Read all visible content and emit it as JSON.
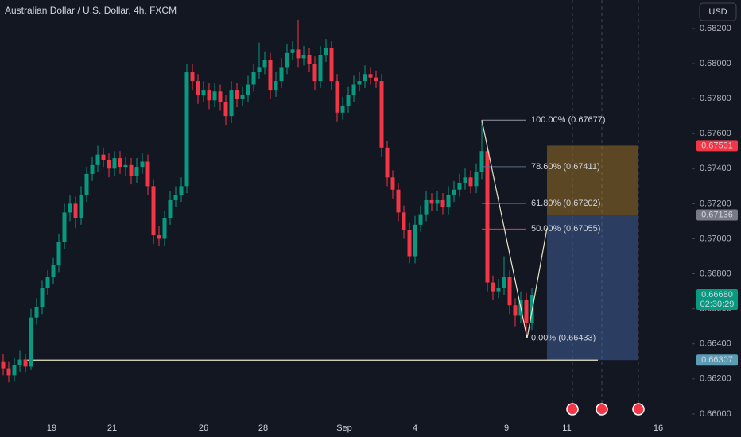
{
  "chart_data": {
    "type": "candlestick",
    "title": "Australian Dollar / U.S. Dollar, 4h, FXCM",
    "currency": "USD",
    "up_color": "#089981",
    "down_color": "#f23645",
    "ylim": [
      0.65868,
      0.68363
    ],
    "yticks": [
      {
        "value": 0.66,
        "label": "0.66000"
      },
      {
        "value": 0.662,
        "label": "0.66200"
      },
      {
        "value": 0.664,
        "label": "0.66400"
      },
      {
        "value": 0.666,
        "label": "0.66600"
      },
      {
        "value": 0.668,
        "label": "0.66800"
      },
      {
        "value": 0.67,
        "label": "0.67000"
      },
      {
        "value": 0.672,
        "label": "0.67200"
      },
      {
        "value": 0.674,
        "label": "0.67400"
      },
      {
        "value": 0.676,
        "label": "0.67600"
      },
      {
        "value": 0.678,
        "label": "0.67800"
      },
      {
        "value": 0.68,
        "label": "0.68000"
      },
      {
        "value": 0.682,
        "label": "0.68200"
      }
    ],
    "x_labels": [
      "19",
      "21",
      "26",
      "28",
      "Sep",
      "4",
      "9",
      "11",
      "16"
    ],
    "candles": [
      [
        0.663,
        0.6634,
        0.6622,
        0.6626
      ],
      [
        0.6626,
        0.663,
        0.6618,
        0.6622
      ],
      [
        0.6622,
        0.6632,
        0.6619,
        0.6628
      ],
      [
        0.6628,
        0.6636,
        0.6624,
        0.6631
      ],
      [
        0.6631,
        0.6634,
        0.6624,
        0.6627
      ],
      [
        0.6627,
        0.666,
        0.6625,
        0.6655
      ],
      [
        0.6655,
        0.6666,
        0.6651,
        0.6661
      ],
      [
        0.6661,
        0.6676,
        0.6657,
        0.6672
      ],
      [
        0.6672,
        0.6682,
        0.6668,
        0.6678
      ],
      [
        0.6678,
        0.6689,
        0.6674,
        0.6685
      ],
      [
        0.6685,
        0.6703,
        0.6681,
        0.6698
      ],
      [
        0.6698,
        0.672,
        0.6694,
        0.6715
      ],
      [
        0.6715,
        0.6725,
        0.671,
        0.672
      ],
      [
        0.672,
        0.6724,
        0.6706,
        0.6712
      ],
      [
        0.6712,
        0.673,
        0.6708,
        0.6725
      ],
      [
        0.6725,
        0.6741,
        0.6721,
        0.6737
      ],
      [
        0.6737,
        0.6747,
        0.6733,
        0.6742
      ],
      [
        0.6742,
        0.6753,
        0.6738,
        0.6748
      ],
      [
        0.6748,
        0.6752,
        0.6741,
        0.6745
      ],
      [
        0.6745,
        0.6749,
        0.6735,
        0.674
      ],
      [
        0.674,
        0.675,
        0.6736,
        0.6746
      ],
      [
        0.6746,
        0.675,
        0.6737,
        0.6741
      ],
      [
        0.6741,
        0.6747,
        0.6736,
        0.6742
      ],
      [
        0.6742,
        0.6746,
        0.6731,
        0.6736
      ],
      [
        0.6736,
        0.6746,
        0.6732,
        0.6741
      ],
      [
        0.6741,
        0.6749,
        0.6737,
        0.6744
      ],
      [
        0.6744,
        0.6748,
        0.6725,
        0.673
      ],
      [
        0.673,
        0.6734,
        0.6697,
        0.6702
      ],
      [
        0.6702,
        0.6707,
        0.6696,
        0.67
      ],
      [
        0.67,
        0.6716,
        0.6696,
        0.6712
      ],
      [
        0.6712,
        0.6727,
        0.6708,
        0.6722
      ],
      [
        0.6722,
        0.673,
        0.6718,
        0.6725
      ],
      [
        0.6725,
        0.6735,
        0.6721,
        0.673
      ],
      [
        0.673,
        0.68,
        0.6726,
        0.6795
      ],
      [
        0.6795,
        0.68,
        0.6785,
        0.679
      ],
      [
        0.679,
        0.6794,
        0.6777,
        0.6782
      ],
      [
        0.6782,
        0.679,
        0.6778,
        0.6785
      ],
      [
        0.6785,
        0.6789,
        0.6774,
        0.6779
      ],
      [
        0.6779,
        0.6789,
        0.6775,
        0.6784
      ],
      [
        0.6784,
        0.6788,
        0.6773,
        0.6778
      ],
      [
        0.6778,
        0.6782,
        0.6765,
        0.677
      ],
      [
        0.677,
        0.679,
        0.6766,
        0.6785
      ],
      [
        0.6785,
        0.6789,
        0.6775,
        0.678
      ],
      [
        0.678,
        0.6787,
        0.6776,
        0.6782
      ],
      [
        0.6782,
        0.6793,
        0.6778,
        0.6788
      ],
      [
        0.6788,
        0.68,
        0.6784,
        0.6795
      ],
      [
        0.6795,
        0.6812,
        0.6791,
        0.6798
      ],
      [
        0.6798,
        0.6807,
        0.6794,
        0.6802
      ],
      [
        0.6802,
        0.6806,
        0.678,
        0.6785
      ],
      [
        0.6785,
        0.6795,
        0.6781,
        0.679
      ],
      [
        0.679,
        0.6803,
        0.6786,
        0.6798
      ],
      [
        0.6798,
        0.6811,
        0.6794,
        0.6806
      ],
      [
        0.6806,
        0.6813,
        0.6802,
        0.6808
      ],
      [
        0.6808,
        0.6825,
        0.6798,
        0.6803
      ],
      [
        0.6803,
        0.681,
        0.6799,
        0.6805
      ],
      [
        0.6805,
        0.6809,
        0.6795,
        0.68
      ],
      [
        0.68,
        0.6804,
        0.6785,
        0.679
      ],
      [
        0.679,
        0.681,
        0.6786,
        0.6805
      ],
      [
        0.6805,
        0.6814,
        0.6801,
        0.6809
      ],
      [
        0.6809,
        0.6813,
        0.6785,
        0.679
      ],
      [
        0.679,
        0.6794,
        0.6767,
        0.6772
      ],
      [
        0.6772,
        0.6781,
        0.6768,
        0.6776
      ],
      [
        0.6776,
        0.6787,
        0.6772,
        0.6782
      ],
      [
        0.6782,
        0.6793,
        0.6778,
        0.6788
      ],
      [
        0.6788,
        0.6795,
        0.6784,
        0.679
      ],
      [
        0.679,
        0.6799,
        0.6786,
        0.6794
      ],
      [
        0.6794,
        0.6798,
        0.6788,
        0.6792
      ],
      [
        0.6792,
        0.6796,
        0.6786,
        0.679
      ],
      [
        0.679,
        0.6794,
        0.6747,
        0.6752
      ],
      [
        0.6752,
        0.6756,
        0.673,
        0.6735
      ],
      [
        0.6735,
        0.6739,
        0.6723,
        0.6728
      ],
      [
        0.6728,
        0.6732,
        0.671,
        0.6715
      ],
      [
        0.6715,
        0.6719,
        0.67,
        0.6705
      ],
      [
        0.6705,
        0.6709,
        0.6686,
        0.669
      ],
      [
        0.669,
        0.6713,
        0.6686,
        0.6708
      ],
      [
        0.6708,
        0.6719,
        0.6704,
        0.6714
      ],
      [
        0.6714,
        0.6727,
        0.671,
        0.6722
      ],
      [
        0.6722,
        0.6726,
        0.6716,
        0.672
      ],
      [
        0.672,
        0.6727,
        0.6716,
        0.6722
      ],
      [
        0.6722,
        0.6726,
        0.6714,
        0.6718
      ],
      [
        0.6718,
        0.673,
        0.6714,
        0.6725
      ],
      [
        0.6725,
        0.6733,
        0.6721,
        0.6728
      ],
      [
        0.6728,
        0.6737,
        0.6724,
        0.6732
      ],
      [
        0.6732,
        0.674,
        0.6728,
        0.6735
      ],
      [
        0.6735,
        0.6739,
        0.6726,
        0.673
      ],
      [
        0.673,
        0.6743,
        0.6726,
        0.6738
      ],
      [
        0.6738,
        0.67677,
        0.6734,
        0.675
      ],
      [
        0.675,
        0.6754,
        0.667,
        0.6675
      ],
      [
        0.6675,
        0.6679,
        0.6665,
        0.667
      ],
      [
        0.667,
        0.6677,
        0.6666,
        0.6672
      ],
      [
        0.6672,
        0.669,
        0.6668,
        0.6678
      ],
      [
        0.6678,
        0.6682,
        0.6657,
        0.6662
      ],
      [
        0.6662,
        0.6666,
        0.665,
        0.6656
      ],
      [
        0.6656,
        0.667,
        0.6652,
        0.6665
      ],
      [
        0.6665,
        0.6669,
        0.66433,
        0.6652
      ],
      [
        0.6652,
        0.6672,
        0.6648,
        0.6668
      ]
    ],
    "fib_levels": [
      {
        "value": 0.67677,
        "label": "100.00% (0.67677)",
        "color": "#9598a1"
      },
      {
        "value": 0.67411,
        "label": "78.60% (0.67411)",
        "color": "#5b6b8c"
      },
      {
        "value": 0.67202,
        "label": "61.80% (0.67202)",
        "color": "#64b5f6"
      },
      {
        "value": 0.67055,
        "label": "50.00% (0.67055)",
        "color": "#f23645"
      },
      {
        "value": 0.66433,
        "label": "0.00% (0.66433)",
        "color": "#9598a1"
      }
    ],
    "zigzag": [
      0.67677,
      0.66433,
      0.6706
    ],
    "position": {
      "target": 0.67531,
      "entry": 0.67136,
      "stop": 0.66307
    },
    "support_line": 0.66307,
    "price_labels": [
      {
        "value": 0.67531,
        "label": "0.67531",
        "color": "#f23645"
      },
      {
        "value": 0.67136,
        "label": "0.67136",
        "color": "#787b86"
      },
      {
        "value": 0.6668,
        "label": "0.66680",
        "color": "#089981",
        "timer": "02:30:29"
      },
      {
        "value": 0.66307,
        "label": "0.66307",
        "color": "#5b9cb4"
      }
    ]
  }
}
